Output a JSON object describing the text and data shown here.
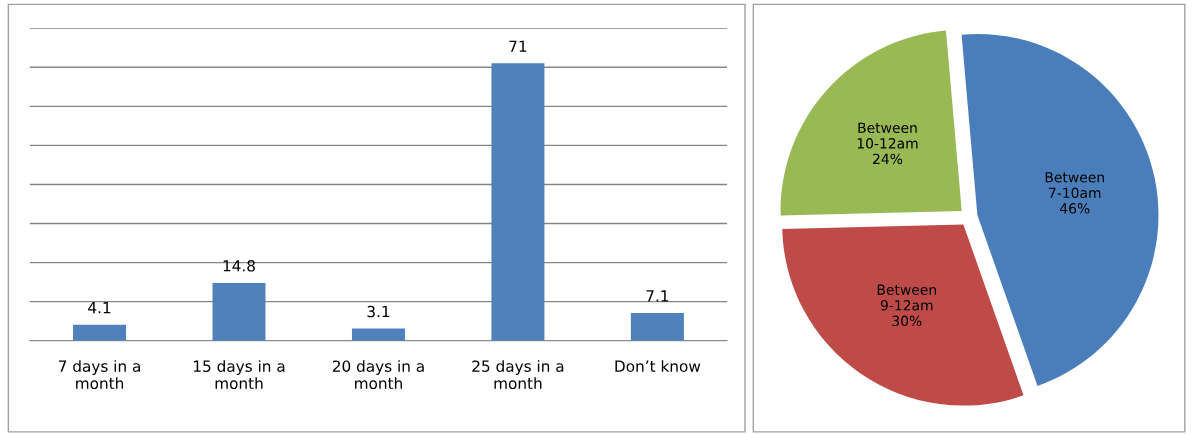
{
  "chart_data": [
    {
      "type": "bar",
      "categories": [
        "7 days in a\nmonth",
        "15 days in a\nmonth",
        "20 days in a\nmonth",
        "25 days in a\nmonth",
        "Don’t know"
      ],
      "values": [
        4.1,
        14.8,
        3.1,
        71,
        7.1
      ],
      "color": "#4f81bd",
      "data_labels": true,
      "ylim": [
        0,
        80
      ],
      "yticks": [
        {
          "value": 0,
          "label": null
        },
        {
          "value": 10,
          "label": null
        },
        {
          "value": 20,
          "label": null
        },
        {
          "value": 30,
          "label": null
        },
        {
          "value": 40,
          "label": null
        },
        {
          "value": 50,
          "label": null
        },
        {
          "value": 60,
          "label": null
        },
        {
          "value": 70,
          "label": null
        },
        {
          "value": 80,
          "label": null
        }
      ],
      "grid": "y",
      "tick_labels": "x"
    },
    {
      "type": "pie",
      "categories": [
        "Between\n7-10am",
        "Between\n9-12am",
        "Between\n10-12am"
      ],
      "values": [
        46,
        30,
        24
      ],
      "value_labels": [
        "46%",
        "30%",
        "24%"
      ],
      "colors": [
        "#4a7ebb",
        "#be4b48",
        "#98b954"
      ]
    }
  ]
}
